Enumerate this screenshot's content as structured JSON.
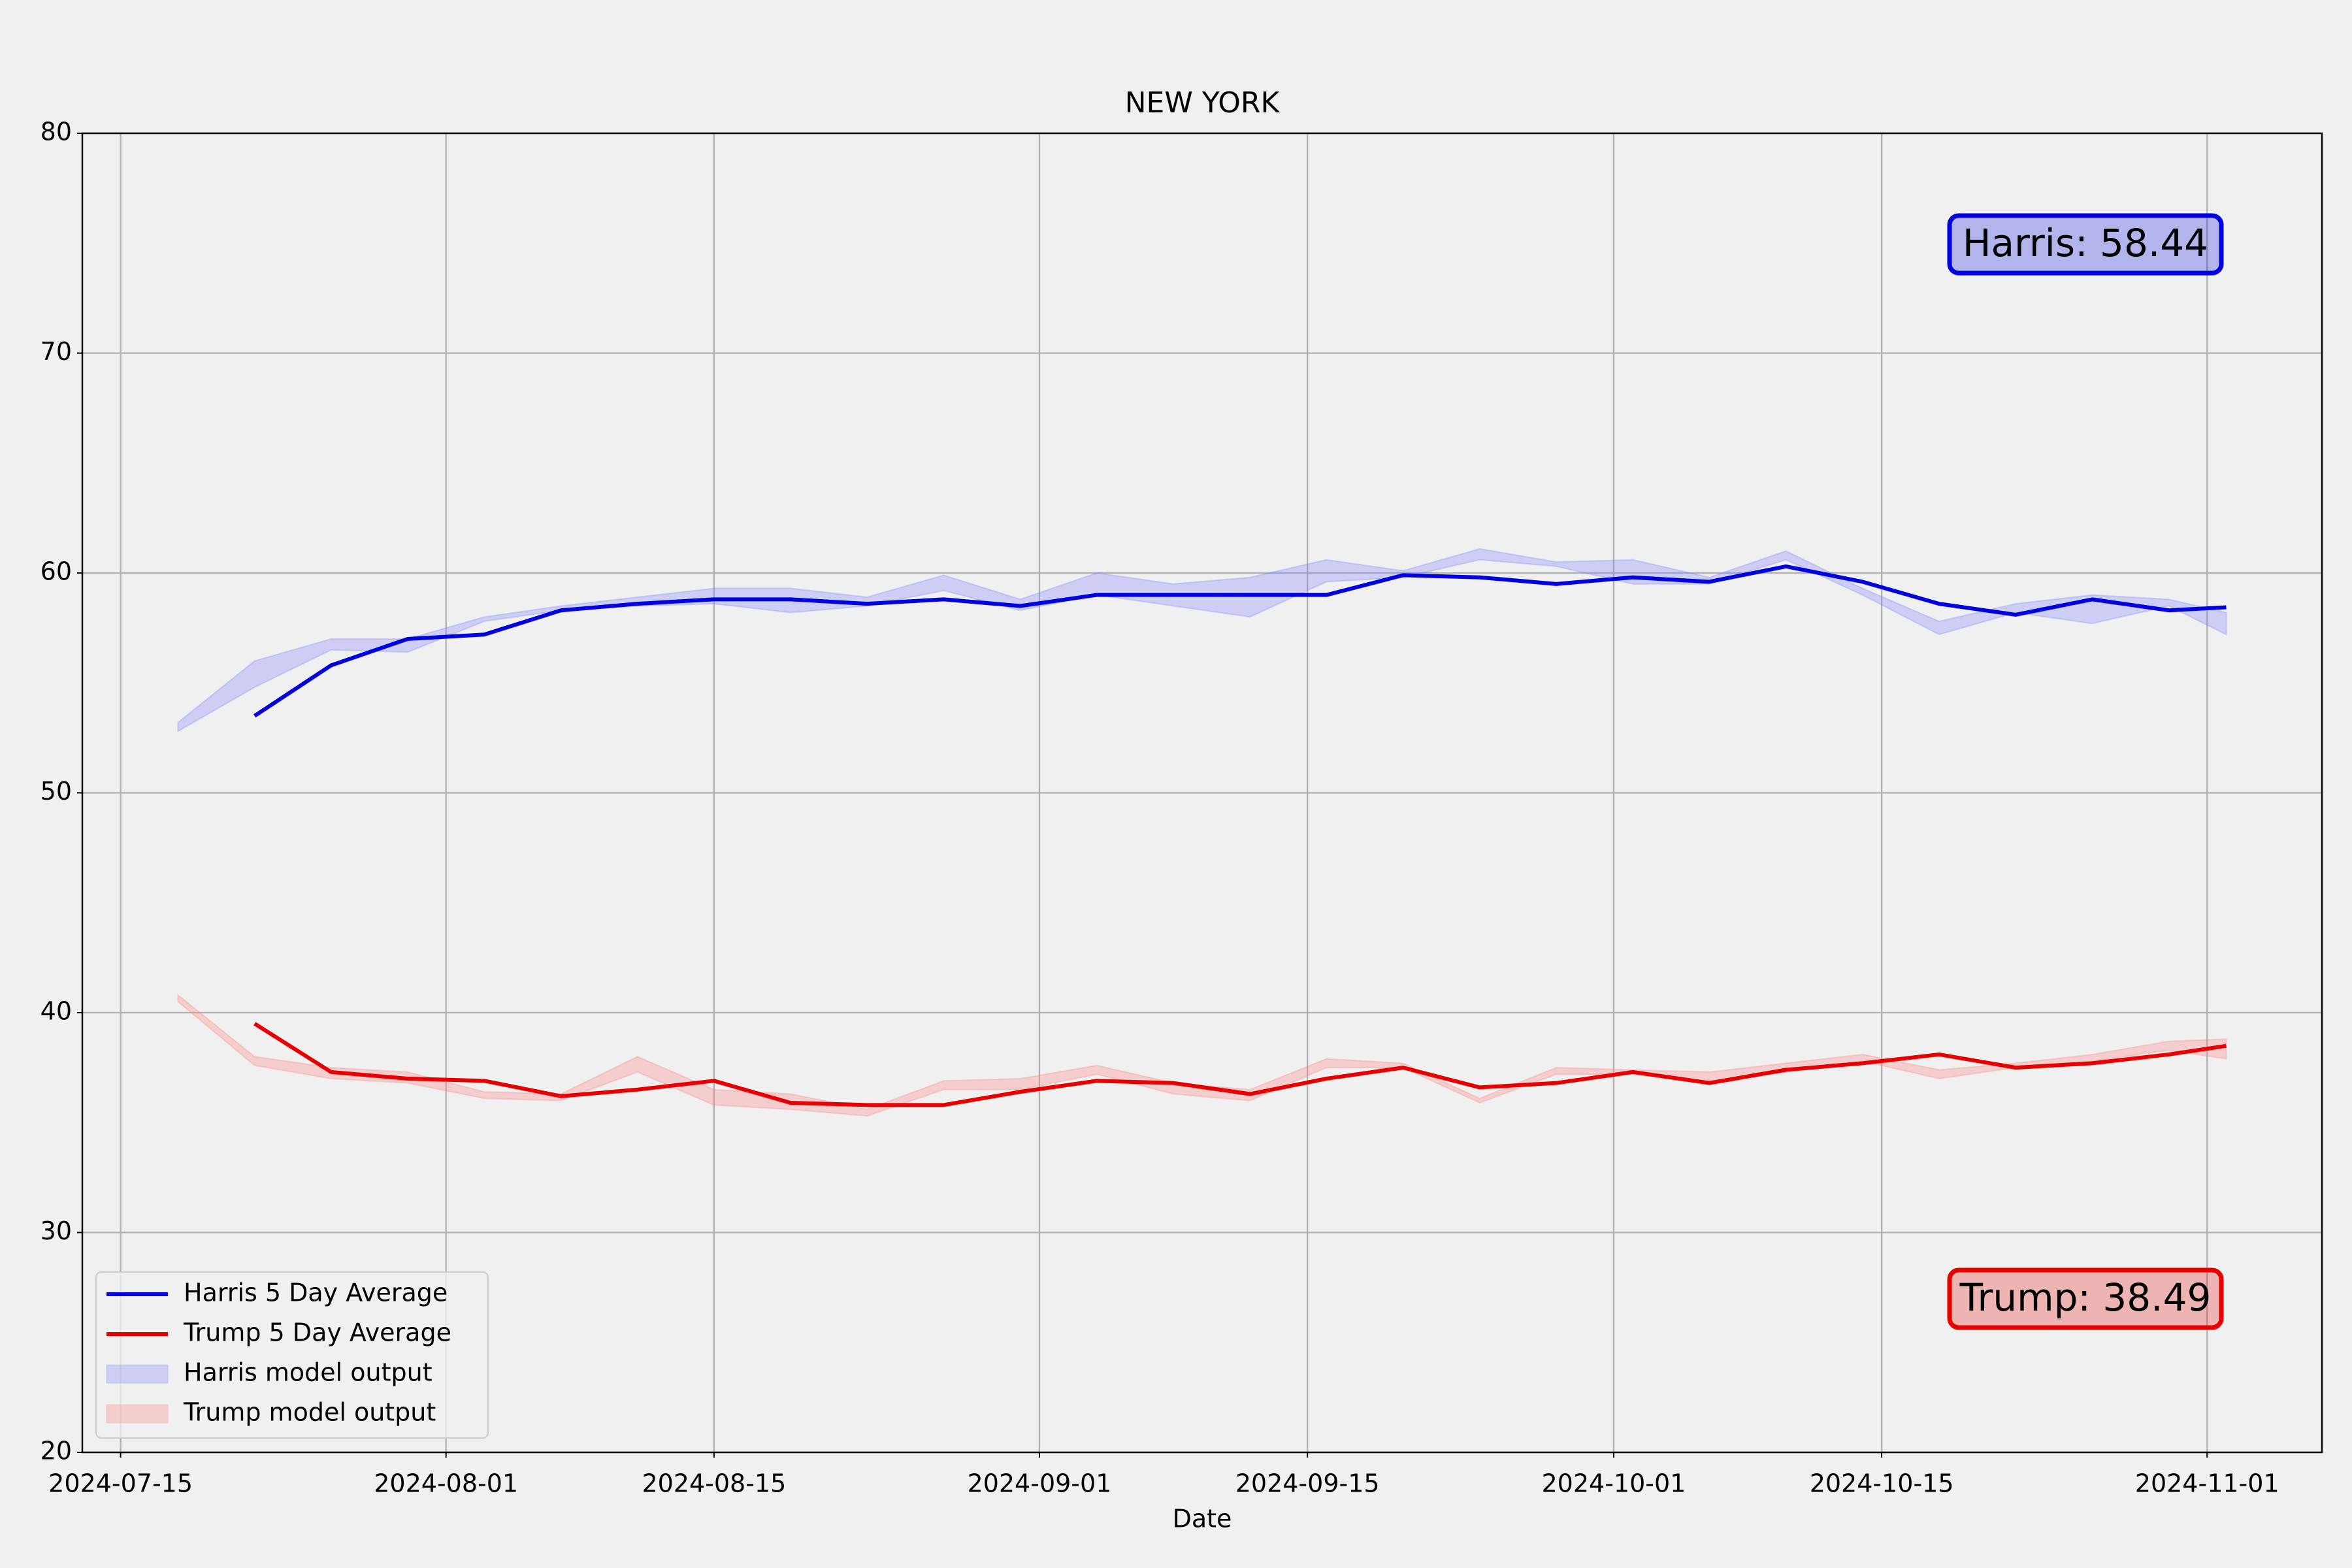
{
  "chart_data": {
    "type": "line",
    "title": "NEW YORK",
    "x_label": "Date",
    "x": [
      "2024-07-18",
      "2024-07-22",
      "2024-07-26",
      "2024-07-30",
      "2024-08-03",
      "2024-08-07",
      "2024-08-11",
      "2024-08-15",
      "2024-08-19",
      "2024-08-23",
      "2024-08-27",
      "2024-08-31",
      "2024-09-04",
      "2024-09-08",
      "2024-09-12",
      "2024-09-16",
      "2024-09-20",
      "2024-09-24",
      "2024-09-28",
      "2024-10-02",
      "2024-10-06",
      "2024-10-10",
      "2024-10-14",
      "2024-10-18",
      "2024-10-22",
      "2024-10-26",
      "2024-10-30",
      "2024-11-02"
    ],
    "series": [
      {
        "name": "Harris 5 Day Average",
        "color": "#0000e0",
        "kind": "line",
        "values": [
          null,
          53.5,
          55.8,
          57.0,
          57.2,
          58.3,
          58.6,
          58.8,
          58.8,
          58.6,
          58.8,
          58.5,
          59.0,
          59.0,
          59.0,
          59.0,
          59.9,
          59.8,
          59.5,
          59.8,
          59.6,
          60.3,
          59.6,
          58.6,
          58.1,
          58.8,
          58.3,
          58.44
        ]
      },
      {
        "name": "Trump 5 Day Average",
        "color": "#e80000",
        "kind": "line",
        "values": [
          null,
          39.5,
          37.3,
          37.0,
          36.9,
          36.2,
          36.5,
          36.9,
          35.9,
          35.8,
          35.8,
          36.4,
          36.9,
          36.8,
          36.3,
          37.0,
          37.5,
          36.6,
          36.8,
          37.3,
          36.8,
          37.4,
          37.7,
          38.1,
          37.5,
          37.7,
          38.1,
          38.49
        ]
      },
      {
        "name": "Harris model output",
        "color": "#8080ff",
        "kind": "band",
        "lower": [
          52.8,
          54.8,
          56.5,
          56.4,
          57.8,
          58.3,
          58.5,
          58.6,
          58.2,
          58.5,
          59.2,
          58.3,
          59.0,
          58.5,
          58.0,
          59.6,
          59.8,
          60.6,
          60.3,
          59.5,
          59.5,
          60.6,
          59.0,
          57.2,
          58.2,
          57.7,
          58.5,
          57.2
        ],
        "upper": [
          53.2,
          56.0,
          57.0,
          57.0,
          58.0,
          58.5,
          58.9,
          59.3,
          59.3,
          58.9,
          59.9,
          58.8,
          60.0,
          59.5,
          59.8,
          60.6,
          60.1,
          61.1,
          60.5,
          60.6,
          59.8,
          61.0,
          59.3,
          57.8,
          58.6,
          59.0,
          58.8,
          58.2
        ]
      },
      {
        "name": "Trump model output",
        "color": "#ff8080",
        "kind": "band",
        "lower": [
          40.5,
          37.6,
          37.0,
          36.8,
          36.1,
          36.0,
          37.3,
          35.8,
          35.6,
          35.3,
          36.5,
          36.5,
          37.2,
          36.3,
          36.0,
          37.5,
          37.5,
          35.9,
          37.2,
          37.2,
          36.9,
          37.3,
          37.8,
          37.0,
          37.5,
          37.8,
          38.3,
          37.9
        ],
        "upper": [
          40.8,
          38.0,
          37.5,
          37.3,
          36.4,
          36.3,
          38.0,
          36.5,
          36.3,
          35.6,
          36.9,
          37.0,
          37.6,
          36.8,
          36.5,
          37.9,
          37.7,
          36.1,
          37.5,
          37.4,
          37.3,
          37.7,
          38.1,
          37.4,
          37.7,
          38.1,
          38.7,
          38.8
        ]
      }
    ],
    "annotations": [
      {
        "text": "Harris: 58.44",
        "color": "#0000e0"
      },
      {
        "text": "Trump: 38.49",
        "color": "#e80000"
      }
    ],
    "xlim": [
      "2024-07-13",
      "2024-11-07"
    ],
    "xticks": [
      "2024-07-15",
      "2024-08-01",
      "2024-08-15",
      "2024-09-01",
      "2024-09-15",
      "2024-10-01",
      "2024-10-15",
      "2024-11-01"
    ],
    "ylim": [
      20,
      80
    ],
    "yticks": [
      20,
      30,
      40,
      50,
      60,
      70,
      80
    ],
    "grid": true,
    "legend": "lower left"
  }
}
